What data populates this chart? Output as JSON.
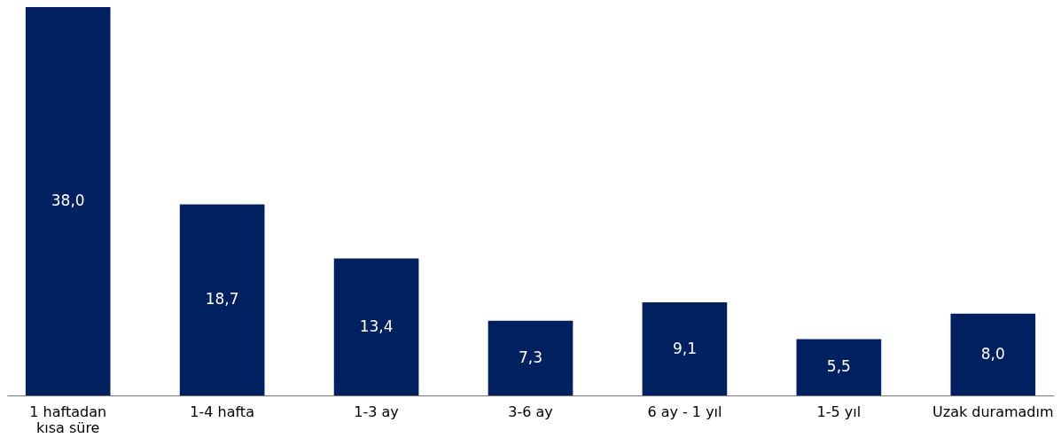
{
  "chart_data": {
    "type": "bar",
    "categories": [
      "1 haftadan kısa süre",
      "1-4 hafta",
      "1-3 ay",
      "3-6 ay",
      "6 ay - 1 yıl",
      "1-5 yıl",
      "Uzak duramadım"
    ],
    "values": [
      38.0,
      18.7,
      13.4,
      7.3,
      9.1,
      5.5,
      8.0
    ],
    "value_labels": [
      "38,0",
      "18,7",
      "13,4",
      "7,3",
      "9,1",
      "5,5",
      "8,0"
    ],
    "color": "#002060"
  }
}
